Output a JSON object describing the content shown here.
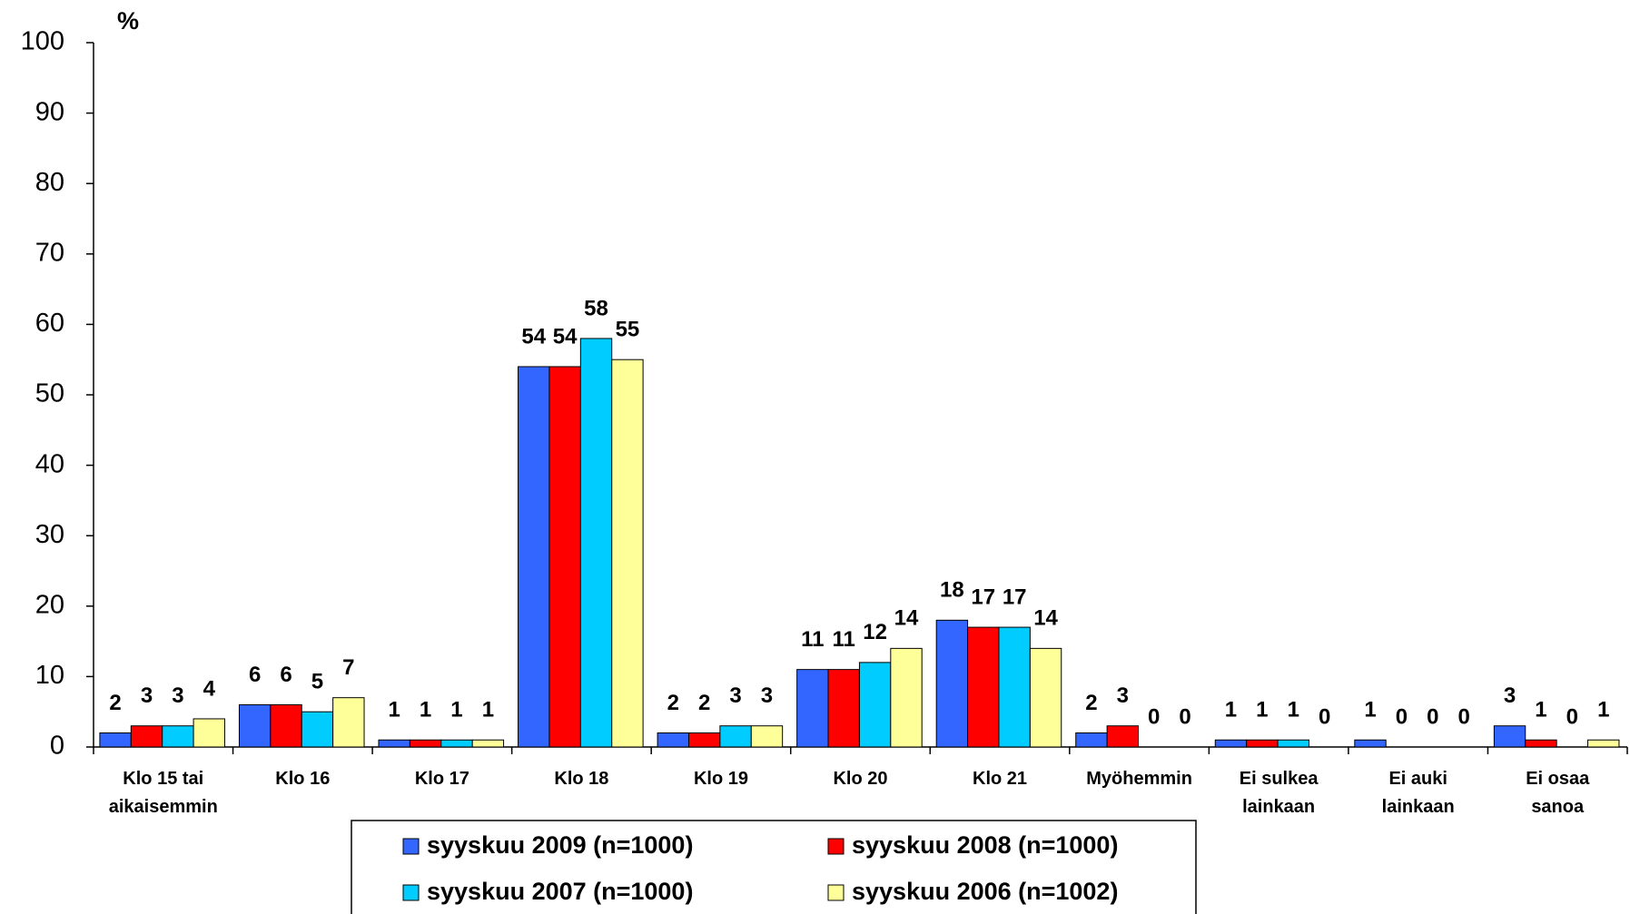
{
  "chart_data": {
    "type": "bar",
    "y_label": "%",
    "categories": [
      "Klo 15 tai\naikaisemmin",
      "Klo 16",
      "Klo 17",
      "Klo 18",
      "Klo 19",
      "Klo 20",
      "Klo 21",
      "Myöhemmin",
      "Ei sulkea\nlainkaan",
      "Ei auki\nlainkaan",
      "Ei osaa\nsanoa"
    ],
    "series": [
      {
        "name": "syyskuu 2009 (n=1000)",
        "color": "#3366ff",
        "values": [
          2,
          6,
          1,
          54,
          2,
          11,
          18,
          2,
          1,
          1,
          3
        ]
      },
      {
        "name": "syyskuu 2008 (n=1000)",
        "color": "#ff0000",
        "values": [
          3,
          6,
          1,
          54,
          2,
          11,
          17,
          3,
          1,
          0,
          1
        ]
      },
      {
        "name": "syyskuu 2007 (n=1000)",
        "color": "#00ccff",
        "values": [
          3,
          5,
          1,
          58,
          3,
          12,
          17,
          0,
          1,
          0,
          0
        ]
      },
      {
        "name": "syyskuu 2006 (n=1002)",
        "color": "#ffff99",
        "values": [
          4,
          7,
          1,
          55,
          3,
          14,
          14,
          0,
          0,
          0,
          1
        ]
      }
    ],
    "ylim": [
      0,
      100
    ],
    "yticks": [
      0,
      10,
      20,
      30,
      40,
      50,
      60,
      70,
      80,
      90,
      100
    ],
    "grid": false,
    "legend": "bottom"
  }
}
